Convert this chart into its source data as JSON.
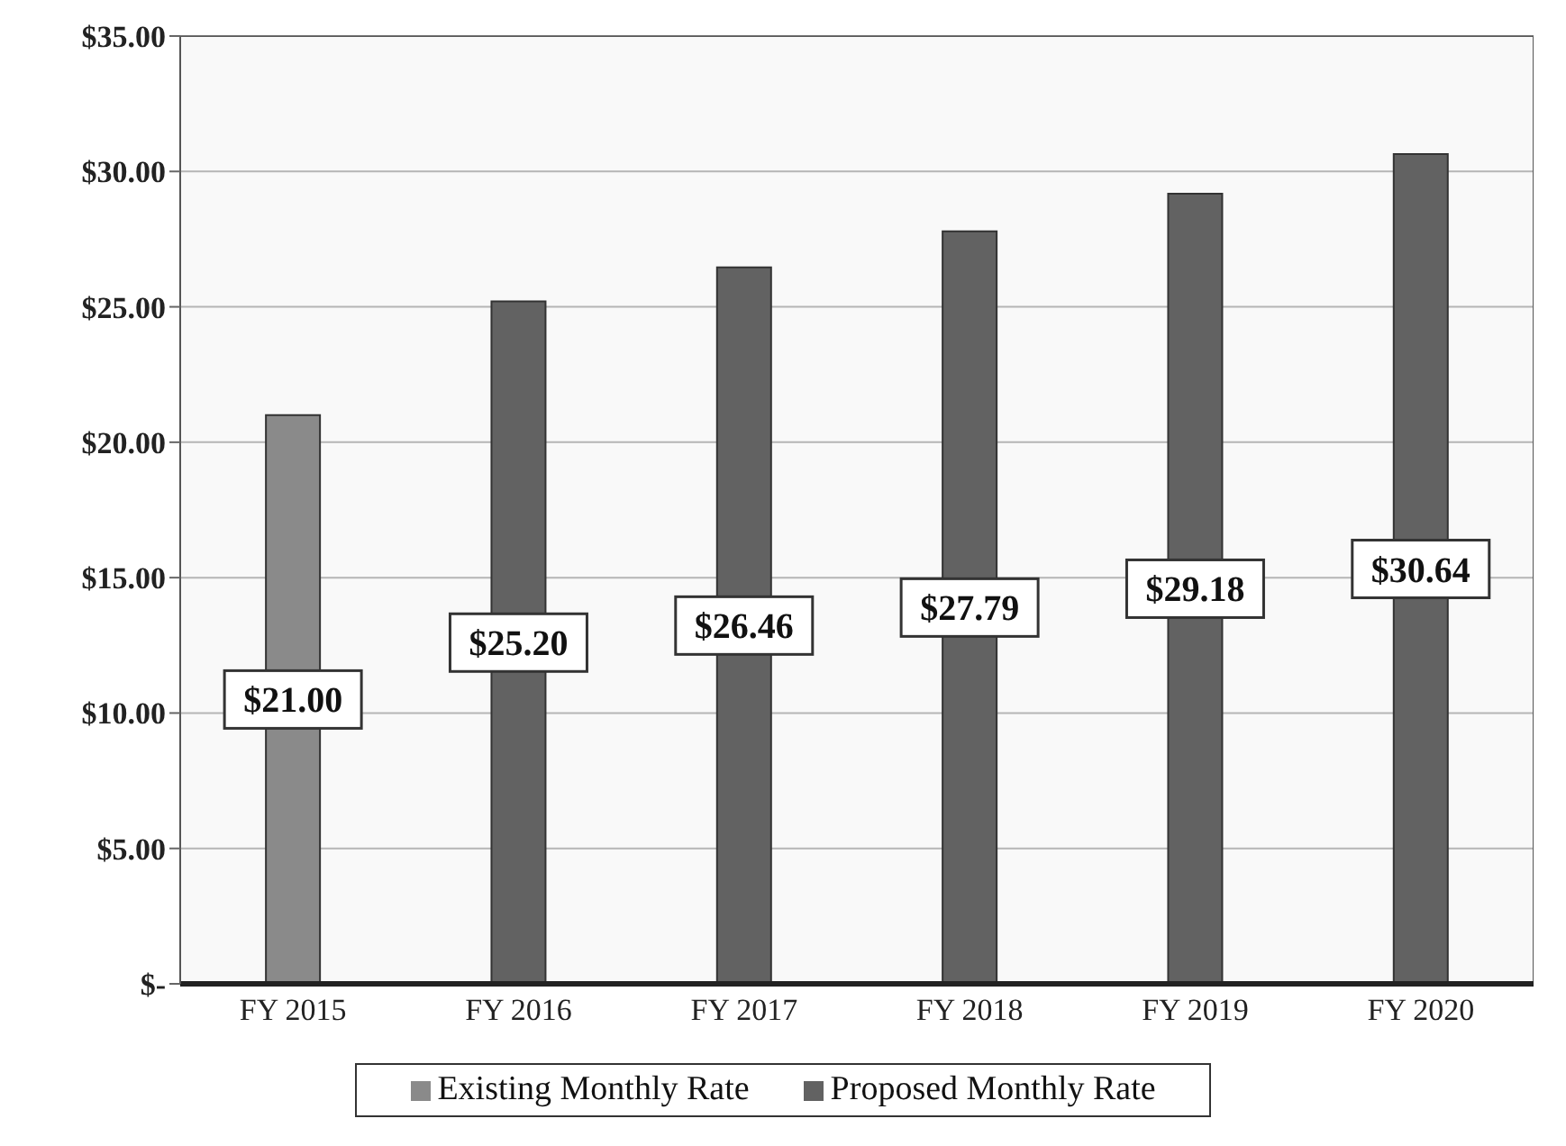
{
  "chart_data": {
    "type": "bar",
    "stacked": true,
    "categories": [
      "FY 2015",
      "FY 2016",
      "FY 2017",
      "FY 2018",
      "FY 2019",
      "FY 2020"
    ],
    "series": [
      {
        "name": "Existing Monthly Rate",
        "color": "#8a8a8a",
        "values": [
          21.0,
          null,
          null,
          null,
          null,
          null
        ],
        "value_labels": [
          "$21.00",
          null,
          null,
          null,
          null,
          null
        ]
      },
      {
        "name": "Proposed Monthly Rate",
        "color": "#626262",
        "values": [
          null,
          25.2,
          26.46,
          27.79,
          29.18,
          30.64
        ],
        "value_labels": [
          null,
          "$25.20",
          "$26.46",
          "$27.79",
          "$29.18",
          "$30.64"
        ]
      }
    ],
    "ylim": [
      0,
      35
    ],
    "yticks": [
      {
        "value": 0,
        "label": "$-"
      },
      {
        "value": 5,
        "label": "$5.00"
      },
      {
        "value": 10,
        "label": "$10.00"
      },
      {
        "value": 15,
        "label": "$15.00"
      },
      {
        "value": 20,
        "label": "$20.00"
      },
      {
        "value": 25,
        "label": "$25.00"
      },
      {
        "value": 30,
        "label": "$30.00"
      },
      {
        "value": 35,
        "label": "$35.00"
      }
    ],
    "grid": "y",
    "legend": "bottom"
  }
}
